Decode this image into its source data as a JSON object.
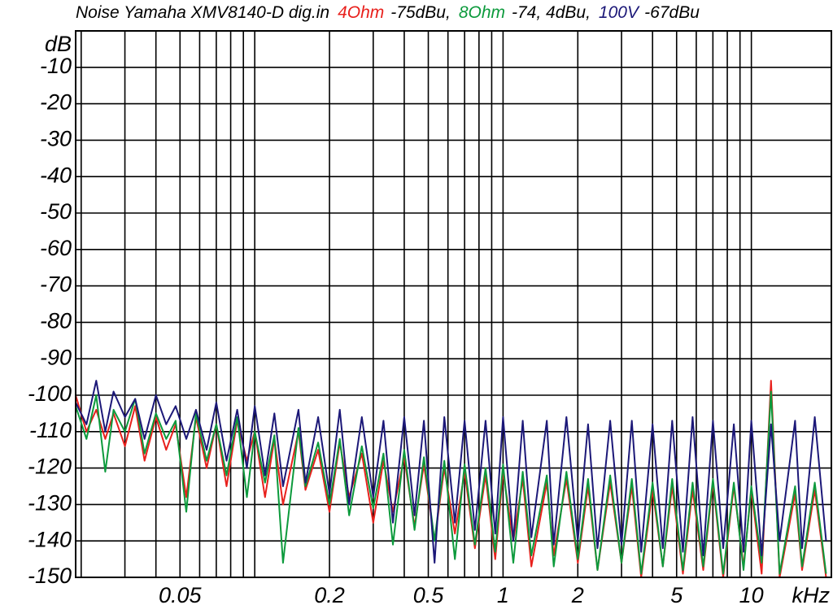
{
  "chart_data": {
    "type": "line",
    "title": "Noise Yamaha XMV8140-D dig.in",
    "x_label": "kHz",
    "y_label": "dB",
    "log_x": true,
    "grid": true,
    "xlim": [
      0.019,
      21
    ],
    "ylim": [
      -150,
      0
    ],
    "xticks": [
      0.05,
      0.2,
      0.5,
      1,
      2,
      5,
      10
    ],
    "minor_xticks": [
      0.02,
      0.03,
      0.04,
      0.06,
      0.07,
      0.08,
      0.09,
      0.1,
      0.3,
      0.4,
      0.6,
      0.7,
      0.8,
      0.9,
      3,
      4,
      6,
      7,
      8,
      9
    ],
    "yticks": [
      -10,
      -20,
      -30,
      -40,
      -50,
      -60,
      -70,
      -80,
      -90,
      -100,
      -110,
      -120,
      -130,
      -140,
      -150
    ],
    "x": [
      0.019,
      0.021,
      0.023,
      0.025,
      0.027,
      0.03,
      0.033,
      0.036,
      0.04,
      0.044,
      0.048,
      0.053,
      0.058,
      0.064,
      0.07,
      0.077,
      0.085,
      0.093,
      0.1,
      0.11,
      0.12,
      0.13,
      0.15,
      0.16,
      0.18,
      0.2,
      0.22,
      0.24,
      0.27,
      0.3,
      0.33,
      0.36,
      0.4,
      0.44,
      0.48,
      0.53,
      0.58,
      0.64,
      0.7,
      0.77,
      0.85,
      0.93,
      1.0,
      1.1,
      1.2,
      1.3,
      1.5,
      1.6,
      1.8,
      2.0,
      2.2,
      2.4,
      2.7,
      3.0,
      3.3,
      3.6,
      4.0,
      4.4,
      4.8,
      5.3,
      5.8,
      6.4,
      7.0,
      7.7,
      8.5,
      9.3,
      10,
      11,
      12,
      13,
      15,
      16,
      18,
      20
    ],
    "series": [
      {
        "name": "4Ohm",
        "level": "-75dBu,",
        "color": "#e8201c",
        "values": [
          -100,
          -110,
          -104,
          -112,
          -105,
          -114,
          -103,
          -118,
          -106,
          -115,
          -108,
          -128,
          -106,
          -120,
          -108,
          -125,
          -107,
          -118,
          -110,
          -128,
          -112,
          -130,
          -110,
          -126,
          -115,
          -132,
          -113,
          -128,
          -116,
          -135,
          -118,
          -132,
          -117,
          -136,
          -119,
          -140,
          -120,
          -138,
          -121,
          -142,
          -122,
          -145,
          -121,
          -140,
          -123,
          -147,
          -124,
          -144,
          -123,
          -146,
          -125,
          -148,
          -124,
          -146,
          -125,
          -150,
          -126,
          -147,
          -125,
          -149,
          -126,
          -148,
          -124,
          -150,
          -125,
          -147,
          -126,
          -149,
          -96,
          -150,
          -127,
          -148,
          -126,
          -150
        ]
      },
      {
        "name": "8Ohm",
        "level": "-74, 4dBu,",
        "color": "#0c9a3c",
        "values": [
          -103,
          -112,
          -100,
          -121,
          -104,
          -110,
          -101,
          -116,
          -105,
          -112,
          -107,
          -132,
          -105,
          -118,
          -108,
          -122,
          -106,
          -128,
          -110,
          -124,
          -111,
          -146,
          -109,
          -125,
          -113,
          -130,
          -112,
          -133,
          -114,
          -131,
          -116,
          -141,
          -115,
          -137,
          -117,
          -140,
          -118,
          -145,
          -119,
          -141,
          -120,
          -143,
          -119,
          -146,
          -121,
          -144,
          -122,
          -147,
          -121,
          -145,
          -123,
          -148,
          -122,
          -146,
          -123,
          -149,
          -124,
          -147,
          -123,
          -148,
          -124,
          -147,
          -123,
          -149,
          -124,
          -148,
          -125,
          -146,
          -99,
          -149,
          -125,
          -147,
          -124,
          -149
        ]
      },
      {
        "name": "100V",
        "level": "-67dBu",
        "color": "#1c1878",
        "values": [
          -102,
          -108,
          -96,
          -110,
          -99,
          -106,
          -101,
          -112,
          -100,
          -108,
          -103,
          -112,
          -104,
          -115,
          -102,
          -118,
          -104,
          -120,
          -103,
          -122,
          -105,
          -125,
          -104,
          -124,
          -106,
          -127,
          -104,
          -130,
          -106,
          -128,
          -107,
          -135,
          -106,
          -133,
          -107,
          -146,
          -106,
          -135,
          -107,
          -137,
          -107,
          -138,
          -106,
          -140,
          -107,
          -139,
          -107,
          -141,
          -106,
          -140,
          -108,
          -142,
          -107,
          -141,
          -107,
          -143,
          -108,
          -142,
          -107,
          -143,
          -106,
          -144,
          -107,
          -142,
          -108,
          -143,
          -107,
          -144,
          -108,
          -140,
          -107,
          -142,
          -106,
          -140
        ]
      }
    ]
  }
}
